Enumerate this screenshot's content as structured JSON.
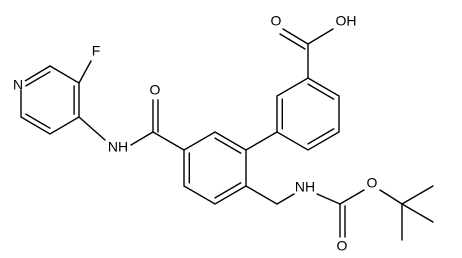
{
  "atoms": {
    "pyridine_n": "N",
    "fluorine": "F",
    "amide_nh": "NH",
    "amide_o": "O",
    "acid_o": "O",
    "acid_oh": "OH",
    "carbamate_nh": "NH",
    "carbamate_o": "O",
    "ester_o": "O"
  }
}
